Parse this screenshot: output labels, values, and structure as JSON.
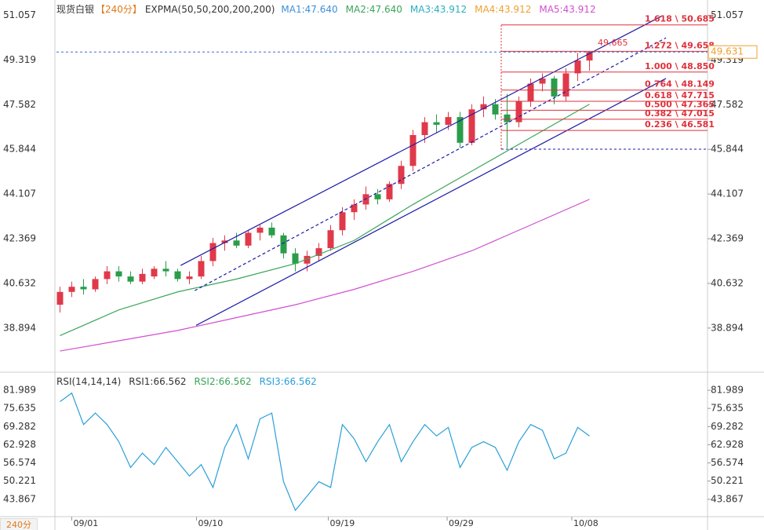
{
  "chart_data": [
    {
      "type": "candlestick",
      "title": "现货白银",
      "period": "【240分】",
      "period_badge": "240分",
      "indicator": "EXPMA(50,50,200,200,200)",
      "legend": [
        {
          "label": "MA1:47.640",
          "color": "#3f8fd8"
        },
        {
          "label": "MA2:47.640",
          "color": "#3aa55a"
        },
        {
          "label": "MA3:43.912",
          "color": "#2ab0c0"
        },
        {
          "label": "MA4:43.912",
          "color": "#f0a030"
        },
        {
          "label": "MA5:43.912",
          "color": "#d050d0"
        }
      ],
      "open": [
        39.8,
        40.3,
        40.5,
        40.4,
        40.8,
        41.1,
        40.9,
        40.7,
        40.9,
        41.2,
        41.1,
        40.8,
        40.9,
        41.5,
        42.2,
        42.3,
        42.1,
        42.6,
        42.8,
        42.5,
        41.8,
        41.4,
        41.7,
        42.0,
        42.7,
        43.4,
        43.7,
        44.1,
        43.9,
        44.5,
        45.2,
        46.4,
        46.9,
        46.8,
        47.1,
        46.1,
        47.4,
        47.6,
        47.2,
        46.9,
        47.7,
        48.4,
        48.6,
        47.9,
        48.8,
        49.3
      ],
      "high": [
        40.5,
        40.7,
        40.8,
        40.9,
        41.3,
        41.3,
        41.1,
        41.2,
        41.3,
        41.5,
        41.2,
        41.1,
        41.7,
        42.4,
        42.5,
        42.6,
        42.7,
        42.9,
        43.0,
        42.6,
        42.0,
        41.9,
        42.2,
        42.9,
        43.6,
        43.9,
        44.4,
        44.3,
        44.6,
        45.4,
        46.6,
        47.1,
        47.2,
        47.3,
        47.3,
        47.6,
        47.9,
        47.8,
        48.0,
        47.9,
        48.6,
        48.8,
        48.7,
        49.0,
        49.6,
        49.67
      ],
      "low": [
        39.5,
        40.1,
        40.2,
        40.3,
        40.6,
        40.7,
        40.6,
        40.6,
        40.8,
        40.9,
        40.7,
        40.6,
        40.8,
        41.3,
        41.9,
        42.0,
        42.0,
        42.3,
        42.4,
        41.6,
        41.1,
        41.1,
        41.5,
        41.9,
        42.5,
        43.1,
        43.5,
        43.7,
        43.8,
        44.3,
        45.0,
        46.1,
        46.5,
        46.6,
        45.9,
        46.0,
        47.1,
        47.0,
        45.9,
        46.7,
        47.5,
        48.1,
        47.6,
        47.7,
        48.5,
        48.9
      ],
      "close": [
        40.3,
        40.5,
        40.4,
        40.8,
        41.1,
        40.9,
        40.7,
        41.0,
        41.2,
        41.1,
        40.8,
        40.9,
        41.5,
        42.2,
        42.3,
        42.1,
        42.6,
        42.8,
        42.5,
        41.8,
        41.4,
        41.7,
        42.0,
        42.7,
        43.4,
        43.7,
        44.1,
        43.9,
        44.5,
        45.2,
        46.4,
        46.9,
        46.8,
        47.1,
        46.1,
        47.4,
        47.6,
        47.2,
        46.9,
        47.7,
        48.4,
        48.6,
        47.9,
        48.8,
        49.3,
        49.63
      ],
      "up_color": "#e0394a",
      "down_color": "#2a9d4a",
      "lines": [
        {
          "color": "#3aa55a",
          "x": [
            0,
            5,
            10,
            15,
            20,
            25,
            30,
            35,
            40,
            45
          ],
          "values": [
            38.6,
            39.6,
            40.3,
            40.8,
            41.4,
            42.3,
            43.7,
            45.0,
            46.3,
            47.6
          ]
        },
        {
          "color": "#d050d0",
          "x": [
            0,
            5,
            10,
            15,
            20,
            25,
            30,
            35,
            40,
            45
          ],
          "values": [
            38.0,
            38.4,
            38.8,
            39.3,
            39.8,
            40.4,
            41.1,
            41.9,
            42.9,
            43.9
          ]
        }
      ],
      "channels": [
        {
          "color": "#1a1aa8",
          "dash": false,
          "x": [
            10.25,
            51.2
          ],
          "y": [
            41.33,
            51.04
          ]
        },
        {
          "color": "#1a1aa8",
          "dash": false,
          "x": [
            11.58,
            51.5
          ],
          "y": [
            39.0,
            48.6
          ]
        },
        {
          "color": "#1a1aa8",
          "dash": true,
          "x": [
            11.45,
            51.5
          ],
          "y": [
            40.35,
            50.18
          ]
        }
      ],
      "fib_start": 37.5,
      "fib_low": 45.85,
      "fib_color": "#e0303a",
      "fib_levels": [
        {
          "value": 50.685,
          "label": "1.618 \\ 50.685"
        },
        {
          "value": 49.658,
          "label": "1.272 \\ 49.658"
        },
        {
          "value": 48.85,
          "label": "1.000 \\ 48.850"
        },
        {
          "value": 48.149,
          "label": "0.764 \\ 48.149"
        },
        {
          "value": 47.715,
          "label": "0.618 \\ 47.715"
        },
        {
          "value": 47.365,
          "label": "0.500 \\ 47.365"
        },
        {
          "value": 47.015,
          "label": "0.382 \\ 47.015"
        },
        {
          "value": 46.581,
          "label": "0.236 \\ 46.581"
        }
      ],
      "high_marker": 49.665,
      "last_price": 49.631,
      "xlim": [
        -0.3,
        54.9
      ],
      "ylim": [
        37.3,
        51.5
      ],
      "yticks": [
        51.057,
        49.319,
        47.582,
        45.844,
        44.107,
        42.369,
        40.632,
        38.894
      ],
      "xticks": [
        {
          "value": 1,
          "label": "09/01"
        },
        {
          "value": 11.6,
          "label": "09/10"
        },
        {
          "value": 22.8,
          "label": "09/19"
        },
        {
          "value": 32.9,
          "label": "09/29"
        },
        {
          "value": 43.5,
          "label": "10/08"
        }
      ]
    },
    {
      "type": "line",
      "title": "RSI(14,14,14)",
      "legend": [
        {
          "label": "RSI1:66.562",
          "color": "#333333"
        },
        {
          "label": "RSI2:66.562",
          "color": "#3aa55a"
        },
        {
          "label": "RSI3:66.562",
          "color": "#2a9fd8"
        }
      ],
      "series": [
        {
          "color": "#2a9fd8",
          "values": [
            78,
            81,
            70,
            74,
            70,
            64,
            55,
            60,
            56,
            62,
            57,
            52,
            56,
            48,
            62,
            70,
            58,
            72,
            74,
            50,
            40,
            45,
            50,
            48,
            70,
            65,
            57,
            64,
            70,
            57,
            64,
            70,
            66,
            69,
            55,
            62,
            64,
            62,
            54,
            64,
            70,
            68,
            58,
            60,
            69,
            66
          ]
        }
      ],
      "xlim": [
        -0.3,
        54.9
      ],
      "ylim": [
        37.8,
        87.2
      ],
      "yticks": [
        81.989,
        75.635,
        69.282,
        62.928,
        56.574,
        50.221,
        43.867
      ]
    }
  ]
}
